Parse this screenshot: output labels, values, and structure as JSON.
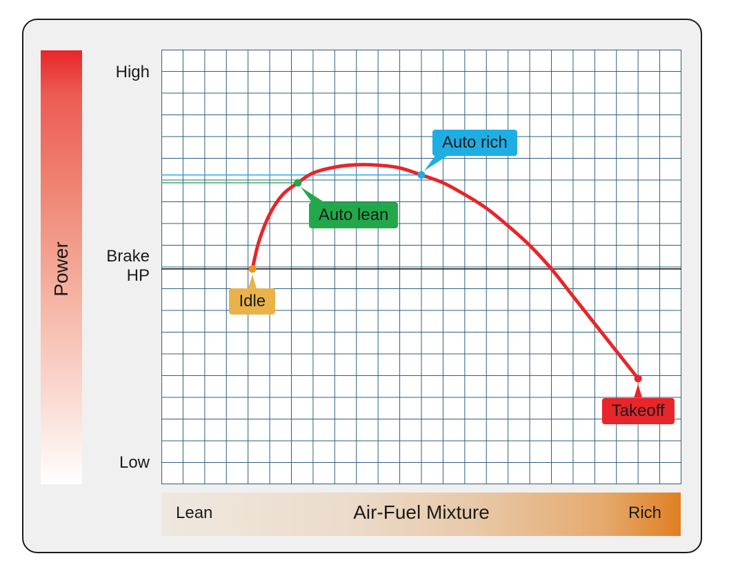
{
  "chart_data": {
    "type": "line",
    "xlabel": "Air-Fuel Mixture",
    "ylabel": "Power",
    "x_ends": [
      "Lean",
      "Rich"
    ],
    "yticks": [
      {
        "label": "High",
        "value": 1.0
      },
      {
        "label": "Brake\nHP",
        "value": 0.5
      },
      {
        "label": "Low",
        "value": 0.0
      }
    ],
    "xlim": [
      0,
      24
    ],
    "ylim": [
      -0.05,
      1.06
    ],
    "grid": true,
    "series": [
      {
        "color": "#e8252a",
        "x": [
          4.2,
          4.5,
          5.0,
          5.6,
          6.3,
          7.0,
          8.0,
          9.0,
          10.0,
          11.0,
          12.0,
          13.0,
          14.0,
          15.0,
          16.0,
          17.0,
          18.0,
          19.0,
          20.0,
          21.0,
          22.0
        ],
        "y": [
          0.5,
          0.57,
          0.64,
          0.69,
          0.72,
          0.745,
          0.76,
          0.766,
          0.765,
          0.758,
          0.74,
          0.72,
          0.69,
          0.655,
          0.61,
          0.56,
          0.5,
          0.43,
          0.36,
          0.29,
          0.22
        ]
      }
    ],
    "annotations": [
      {
        "label": "Idle",
        "x": 4.2,
        "y": 0.5,
        "color": "#e9b24a",
        "dot_color": "#f0921e",
        "side": "below"
      },
      {
        "label": "Auto lean",
        "x": 6.3,
        "y": 0.72,
        "color": "#22a84a",
        "dot_color": "#22a84a",
        "side": "below-right"
      },
      {
        "label": "Auto rich",
        "x": 12.0,
        "y": 0.74,
        "color": "#1eaee4",
        "dot_color": "#1eaee4",
        "side": "above-right"
      },
      {
        "label": "Takeoff",
        "x": 22.0,
        "y": 0.22,
        "color": "#e8252a",
        "dot_color": "#e8252a",
        "side": "below"
      }
    ],
    "reference_lines": [
      {
        "y": 0.5,
        "color": "#1a1a1a"
      },
      {
        "y": 0.72,
        "color": "#22a84a",
        "to_x": 6.3
      },
      {
        "y": 0.74,
        "color": "#1eaee4",
        "to_x": 12.0
      }
    ]
  },
  "colors": {
    "grid": "#2c5e82",
    "frame_bg": "#f0f0f0",
    "power_top": "#e8252a",
    "mixture_right": "#e07f22"
  }
}
